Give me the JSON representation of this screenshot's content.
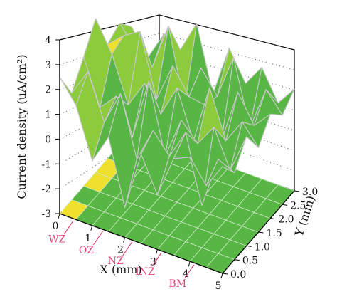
{
  "chart_data": {
    "type": "surface3d",
    "title": "",
    "xlabel": "X (mm)",
    "ylabel": "Y (mm)",
    "zlabel": "Current density (uA/cm²)",
    "x_ticks": [
      "0",
      "1",
      "2",
      "3",
      "4",
      "5"
    ],
    "y_ticks": [
      "0.0",
      "0.5",
      "1.0",
      "1.5",
      "2.0",
      "2.5",
      "3.0"
    ],
    "z_ticks": [
      "-3",
      "-2",
      "-1",
      "0",
      "1",
      "2",
      "3",
      "4"
    ],
    "xlim": [
      0,
      5
    ],
    "ylim": [
      0,
      3
    ],
    "zlim": [
      -3,
      4
    ],
    "zone_labels": [
      {
        "name": "WZ",
        "x": 0.4
      },
      {
        "name": "OZ",
        "x": 1.3
      },
      {
        "name": "NZ",
        "x": 2.2
      },
      {
        "name": "INZ",
        "x": 3.1
      },
      {
        "name": "BM",
        "x": 4.1
      }
    ],
    "contour_projection": true,
    "colormap": [
      {
        "from": -3.0,
        "to": -2.0,
        "color": "#3f5fb4"
      },
      {
        "from": -2.0,
        "to": -1.0,
        "color": "#7ad0e0"
      },
      {
        "from": -1.0,
        "to": 0.0,
        "color": "#52a84a"
      },
      {
        "from": 0.0,
        "to": 1.0,
        "color": "#58b645"
      },
      {
        "from": 1.0,
        "to": 2.0,
        "color": "#8ccb3c"
      },
      {
        "from": 2.0,
        "to": 2.5,
        "color": "#f0e02e"
      },
      {
        "from": 2.5,
        "to": 4.0,
        "color": "#e0692a"
      }
    ],
    "x_grid": [
      0,
      0.5,
      1,
      1.5,
      2,
      2.5,
      3,
      3.5,
      4,
      4.5,
      5
    ],
    "y_grid": [
      0,
      0.5,
      1,
      1.5,
      2,
      2.5,
      3
    ],
    "z_values": [
      [
        2.5,
        1.6,
        -0.4,
        0.8,
        -1.8,
        0.6,
        -0.8,
        0.9,
        1.2,
        0.3,
        1.3
      ],
      [
        1.3,
        2.4,
        0.6,
        2.0,
        -0.4,
        1.0,
        0.2,
        1.4,
        -1.3,
        0.8,
        0.5
      ],
      [
        2.2,
        0.4,
        1.1,
        -0.3,
        2.2,
        -0.6,
        1.1,
        0.4,
        1.3,
        -0.2,
        1.4
      ],
      [
        3.2,
        2.0,
        0.2,
        1.3,
        0.3,
        1.6,
        -0.3,
        2.1,
        0.2,
        1.2,
        0.4
      ],
      [
        1.6,
        2.2,
        2.6,
        0.1,
        1.7,
        0.7,
        0.6,
        -0.6,
        1.6,
        0.5,
        1.2
      ],
      [
        1.9,
        1.1,
        0.6,
        2.5,
        -0.5,
        1.3,
        0.4,
        2.2,
        -0.4,
        1.4,
        0.6
      ],
      [
        1.2,
        0.2,
        1.4,
        1.0,
        2.3,
        -0.3,
        1.8,
        0.6,
        1.5,
        0.3,
        1.1
      ]
    ]
  }
}
